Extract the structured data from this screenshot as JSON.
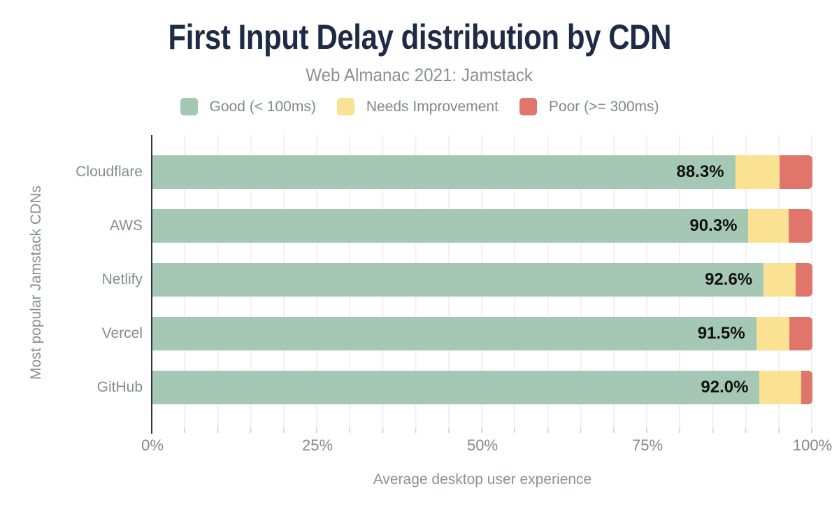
{
  "title": "First Input Delay distribution by CDN",
  "subtitle": "Web Almanac 2021: Jamstack",
  "legend": {
    "items": [
      {
        "label": "Good (< 100ms)",
        "color": "#a5c8b5"
      },
      {
        "label": "Needs Improvement",
        "color": "#fbe293"
      },
      {
        "label": "Poor (>= 300ms)",
        "color": "#e0756c"
      }
    ]
  },
  "chart_data": {
    "type": "bar",
    "orientation": "horizontal",
    "stacked": true,
    "title": "First Input Delay distribution by CDN",
    "subtitle": "Web Almanac 2021: Jamstack",
    "categories": [
      "Cloudflare",
      "AWS",
      "Netlify",
      "Vercel",
      "GitHub"
    ],
    "series": [
      {
        "name": "Good (< 100ms)",
        "color": "#a5c8b5",
        "values": [
          88.3,
          90.3,
          92.6,
          91.5,
          92.0
        ]
      },
      {
        "name": "Needs Improvement",
        "color": "#fbe293",
        "values": [
          6.7,
          6.1,
          4.9,
          5.0,
          6.3
        ]
      },
      {
        "name": "Poor (>= 300ms)",
        "color": "#e0756c",
        "values": [
          5.0,
          3.6,
          2.5,
          3.5,
          1.7
        ]
      }
    ],
    "bar_labels": [
      "88.3%",
      "90.3%",
      "92.6%",
      "91.5%",
      "92.0%"
    ],
    "xlabel": "Average desktop user experience",
    "ylabel": "Most popular Jamstack CDNs",
    "xlim": [
      0,
      100
    ],
    "x_ticks": [
      {
        "label": "0%",
        "pos": 0
      },
      {
        "label": "25%",
        "pos": 25
      },
      {
        "label": "50%",
        "pos": 50
      },
      {
        "label": "75%",
        "pos": 75
      },
      {
        "label": "100%",
        "pos": 100
      }
    ],
    "grid": "vertical lines every 5%",
    "legend_position": "top"
  },
  "colors": {
    "title_text": "#1d2b45",
    "subtitle_text": "#8a9095",
    "axis_text": "#82888e",
    "gridline": "#f1f1f1",
    "axis_line": "#273446",
    "bar_value_text": "#111111",
    "background": "#ffffff"
  }
}
